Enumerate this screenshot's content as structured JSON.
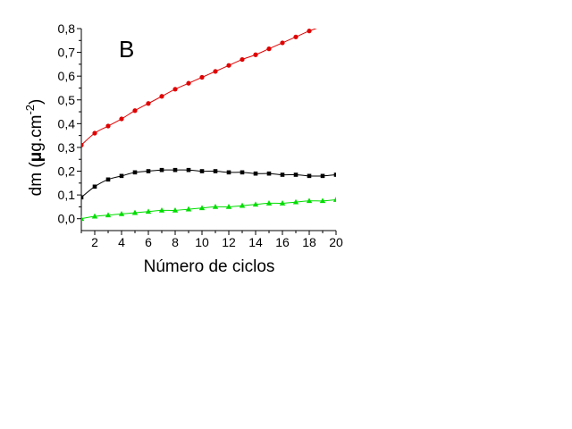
{
  "chart_data": {
    "type": "line",
    "panel_label": "B",
    "title": "",
    "xlabel": "Número de ciclos",
    "ylabel": {
      "main": "dm (",
      "mu": "μ",
      "unit": "g.cm",
      "sup": "-2",
      "close": ")"
    },
    "xlim": [
      1,
      20
    ],
    "ylim": [
      -0.05,
      0.8
    ],
    "x_ticks": [
      2,
      4,
      6,
      8,
      10,
      12,
      14,
      16,
      18,
      20
    ],
    "y_ticks": [
      0.0,
      0.1,
      0.2,
      0.3,
      0.4,
      0.5,
      0.6,
      0.7,
      0.8
    ],
    "x_tick_labels": [
      "2",
      "4",
      "6",
      "8",
      "10",
      "12",
      "14",
      "16",
      "18",
      "20"
    ],
    "y_tick_labels": [
      "0,0",
      "0,1",
      "0,2",
      "0,3",
      "0,4",
      "0,5",
      "0,6",
      "0,7",
      "0,8"
    ],
    "grid": false,
    "legend": "none",
    "series": [
      {
        "color": "#e00000",
        "marker": "circle",
        "x": [
          1,
          2,
          3,
          4,
          5,
          6,
          7,
          8,
          9,
          10,
          11,
          12,
          13,
          14,
          15,
          16,
          17,
          18,
          19
        ],
        "values": [
          0.31,
          0.36,
          0.39,
          0.42,
          0.455,
          0.485,
          0.515,
          0.545,
          0.57,
          0.595,
          0.62,
          0.645,
          0.67,
          0.69,
          0.715,
          0.74,
          0.765,
          0.79,
          0.81
        ]
      },
      {
        "color": "#000000",
        "marker": "square",
        "x": [
          1,
          2,
          3,
          4,
          5,
          6,
          7,
          8,
          9,
          10,
          11,
          12,
          13,
          14,
          15,
          16,
          17,
          18,
          19,
          20
        ],
        "values": [
          0.09,
          0.135,
          0.165,
          0.18,
          0.195,
          0.2,
          0.205,
          0.205,
          0.205,
          0.2,
          0.2,
          0.195,
          0.195,
          0.19,
          0.19,
          0.185,
          0.185,
          0.18,
          0.18,
          0.185
        ]
      },
      {
        "color": "#00dd00",
        "marker": "triangle",
        "x": [
          1,
          2,
          3,
          4,
          5,
          6,
          7,
          8,
          9,
          10,
          11,
          12,
          13,
          14,
          15,
          16,
          17,
          18,
          19,
          20
        ],
        "values": [
          0.0,
          0.01,
          0.015,
          0.02,
          0.025,
          0.03,
          0.035,
          0.035,
          0.04,
          0.045,
          0.05,
          0.05,
          0.055,
          0.06,
          0.065,
          0.065,
          0.07,
          0.075,
          0.075,
          0.08
        ]
      }
    ]
  }
}
